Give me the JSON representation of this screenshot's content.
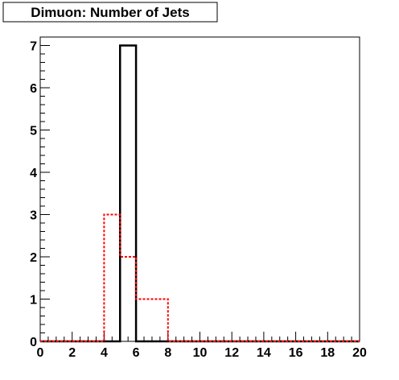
{
  "chart_data": {
    "type": "bar",
    "title": "Dimuon: Number of Jets",
    "xlim": [
      0,
      20
    ],
    "ylim": [
      0,
      7.2
    ],
    "x_ticks": [
      "0",
      "2",
      "4",
      "6",
      "8",
      "10",
      "12",
      "14",
      "16",
      "18",
      "20"
    ],
    "y_ticks": [
      "0",
      "1",
      "2",
      "3",
      "4",
      "5",
      "6",
      "7"
    ],
    "bin_edges": [
      0,
      1,
      2,
      3,
      4,
      5,
      6,
      7,
      8,
      9,
      10,
      11,
      12,
      13,
      14,
      15,
      16,
      17,
      18,
      19,
      20
    ],
    "series": [
      {
        "color": "#000000",
        "style": "solid",
        "values": [
          0,
          0,
          0,
          0,
          0,
          7,
          0,
          0,
          0,
          0,
          0,
          0,
          0,
          0,
          0,
          0,
          0,
          0,
          0,
          0
        ]
      },
      {
        "color": "#ff0000",
        "style": "dashed",
        "values": [
          0,
          0,
          0,
          0,
          3,
          2,
          1,
          1,
          0,
          0,
          0,
          0,
          0,
          0,
          0,
          0,
          0,
          0,
          0,
          0
        ]
      }
    ],
    "grid": false
  }
}
